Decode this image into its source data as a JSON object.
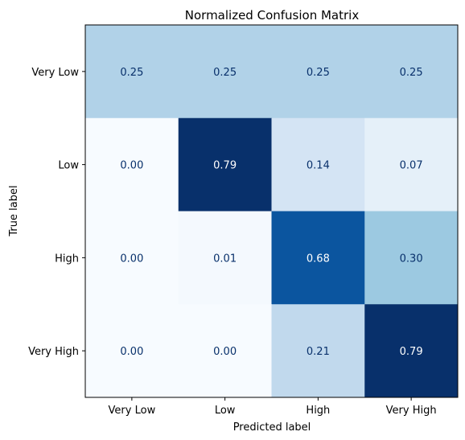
{
  "chart_data": {
    "type": "heatmap",
    "title": "Normalized Confusion Matrix",
    "xlabel": "Predicted label",
    "ylabel": "True label",
    "x_categories": [
      "Very Low",
      "Low",
      "High",
      "Very High"
    ],
    "y_categories": [
      "Very Low",
      "Low",
      "High",
      "Very High"
    ],
    "values": [
      [
        0.25,
        0.25,
        0.25,
        0.25
      ],
      [
        0.0,
        0.79,
        0.14,
        0.07
      ],
      [
        0.0,
        0.01,
        0.68,
        0.3
      ],
      [
        0.0,
        0.0,
        0.21,
        0.79
      ]
    ],
    "cell_labels": [
      [
        "0.25",
        "0.25",
        "0.25",
        "0.25"
      ],
      [
        "0.00",
        "0.79",
        "0.14",
        "0.07"
      ],
      [
        "0.00",
        "0.01",
        "0.68",
        "0.30"
      ],
      [
        "0.00",
        "0.00",
        "0.21",
        "0.79"
      ]
    ],
    "colormap": "Blues",
    "vmin": 0.0,
    "vmax": 0.79,
    "colorbar": false,
    "grid": false
  }
}
